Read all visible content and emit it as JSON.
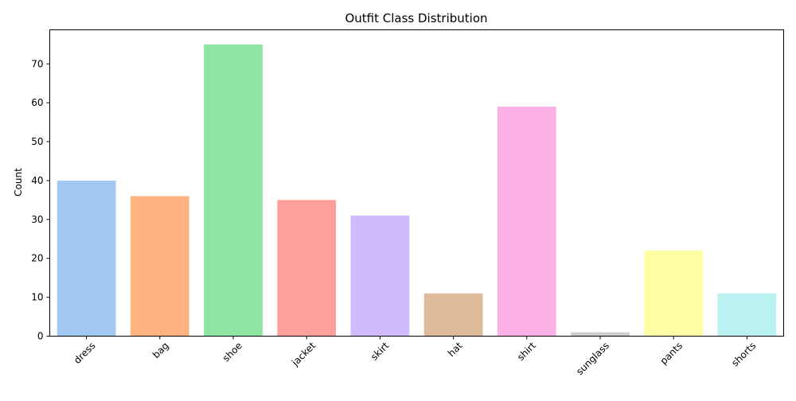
{
  "chart_data": {
    "type": "bar",
    "title": "Outfit Class Distribution",
    "xlabel": "",
    "ylabel": "Count",
    "categories": [
      "dress",
      "bag",
      "shoe",
      "jacket",
      "skirt",
      "hat",
      "shirt",
      "sunglass",
      "pants",
      "shorts"
    ],
    "values": [
      40,
      36,
      75,
      35,
      31,
      11,
      59,
      1,
      22,
      11
    ],
    "colors": [
      "#a1c9f4",
      "#ffb482",
      "#8de5a1",
      "#ff9f9b",
      "#d0bbff",
      "#debb9b",
      "#fab0e4",
      "#cfcfcf",
      "#fffea3",
      "#b9f2f0"
    ],
    "ylim": [
      0,
      78.75
    ],
    "yticks": [
      0,
      10,
      20,
      30,
      40,
      50,
      60,
      70
    ],
    "grid": false,
    "legend": "none"
  }
}
